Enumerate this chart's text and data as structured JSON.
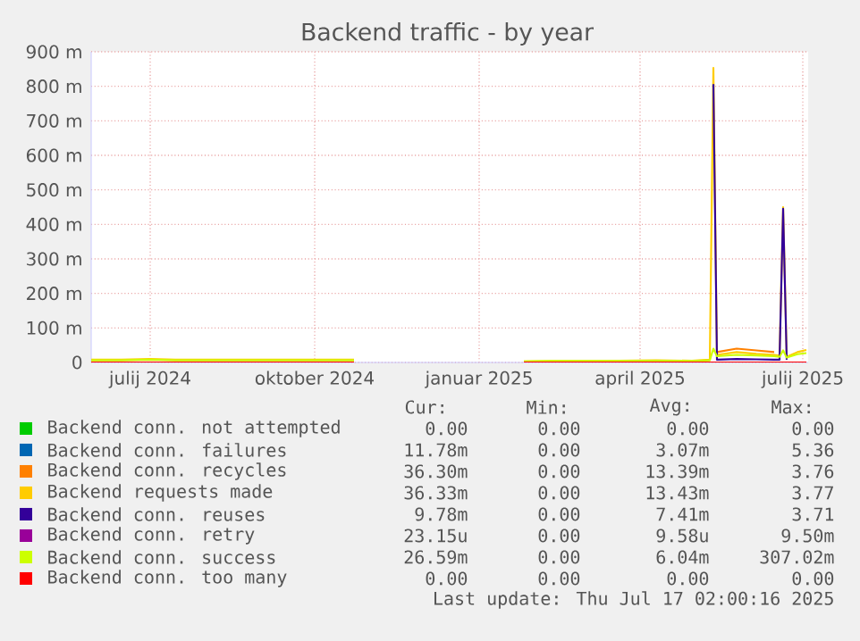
{
  "chart_data": {
    "type": "line",
    "title": "Backend traffic - by year",
    "x": [
      "2024-05-29",
      "2024-06-15",
      "2024-07-01",
      "2024-07-15",
      "2024-08-01",
      "2024-08-15",
      "2024-09-01",
      "2024-09-15",
      "2024-10-01",
      "2024-10-15",
      "2024-10-23",
      "2024-10-24",
      "2025-01-26",
      "2025-02-10",
      "2025-03-01",
      "2025-03-20",
      "2025-04-10",
      "2025-04-30",
      "2025-05-10",
      "2025-05-12",
      "2025-05-14",
      "2025-05-25",
      "2025-06-05",
      "2025-06-15",
      "2025-06-18",
      "2025-06-20",
      "2025-06-22",
      "2025-06-28",
      "2025-07-03"
    ],
    "series": [
      {
        "name": "Backend conn. not attempted",
        "color": "#00cc00",
        "values": [
          null,
          null,
          null,
          null,
          null,
          null,
          null,
          null,
          null,
          null,
          null,
          null,
          null,
          null,
          null,
          null,
          null,
          null,
          null,
          null,
          null,
          null,
          null,
          null,
          null,
          null,
          null,
          null,
          null
        ]
      },
      {
        "name": "Backend conn. failures",
        "color": "#0066b3",
        "values": [
          null,
          null,
          null,
          null,
          null,
          null,
          null,
          null,
          null,
          null,
          null,
          null,
          null,
          null,
          null,
          null,
          null,
          null,
          null,
          null,
          null,
          null,
          null,
          null,
          null,
          null,
          null,
          null,
          null
        ]
      },
      {
        "name": "Backend conn. recycles",
        "color": "#ff8000",
        "values": [
          null,
          null,
          null,
          null,
          null,
          null,
          null,
          null,
          null,
          null,
          null,
          null,
          null,
          null,
          null,
          null,
          null,
          null,
          null,
          null,
          30,
          40,
          35,
          30,
          null,
          null,
          null,
          null,
          null
        ]
      },
      {
        "name": "Backend requests made",
        "color": "#ffcc00",
        "values": [
          8,
          8,
          10,
          8,
          8,
          8,
          8,
          8,
          8,
          8,
          8,
          null,
          3,
          4,
          4,
          5,
          6,
          5,
          8,
          853,
          22,
          30,
          25,
          22,
          20,
          450,
          16,
          30,
          36
        ]
      },
      {
        "name": "Backend conn. reuses",
        "color": "#330099",
        "values": [
          null,
          null,
          null,
          null,
          null,
          null,
          null,
          null,
          null,
          null,
          null,
          null,
          null,
          null,
          null,
          null,
          null,
          null,
          null,
          806,
          8,
          10,
          9,
          8,
          8,
          445,
          8,
          null,
          null
        ]
      },
      {
        "name": "Backend conn. retry",
        "color": "#990099",
        "values": [
          null,
          null,
          null,
          null,
          null,
          null,
          null,
          null,
          null,
          null,
          null,
          null,
          null,
          null,
          null,
          null,
          null,
          null,
          null,
          null,
          null,
          null,
          null,
          null,
          null,
          null,
          null,
          null,
          null
        ]
      },
      {
        "name": "Backend conn. success",
        "color": "#ccff00",
        "values": [
          6,
          6,
          8,
          6,
          6,
          6,
          6,
          6,
          6,
          6,
          6,
          null,
          3,
          4,
          4,
          4,
          5,
          4,
          6,
          40,
          18,
          22,
          20,
          18,
          16,
          35,
          14,
          24,
          27
        ]
      },
      {
        "name": "Backend conn. too many",
        "color": "#ff0000",
        "values": [
          0,
          0,
          0,
          0,
          0,
          0,
          0,
          0,
          0,
          0,
          0,
          null,
          0,
          0,
          0,
          0,
          0,
          0,
          0,
          0,
          0,
          0,
          0,
          0,
          0,
          0,
          0,
          0,
          0
        ]
      }
    ],
    "xlim": [
      "2024-05-29",
      "2025-07-04"
    ],
    "xticks": [
      {
        "value": "2024-07-01",
        "label": "julij 2024"
      },
      {
        "value": "2024-10-01",
        "label": "oktober 2024"
      },
      {
        "value": "2025-01-01",
        "label": "januar 2025"
      },
      {
        "value": "2025-04-01",
        "label": "april 2025"
      },
      {
        "value": "2025-07-01",
        "label": "julij 2025"
      }
    ],
    "ylim": [
      0,
      900
    ],
    "yticks": [
      0,
      {
        "value": 100,
        "label": "100 m"
      },
      {
        "value": 200,
        "label": "200 m"
      },
      {
        "value": 300,
        "label": "300 m"
      },
      {
        "value": 400,
        "label": "400 m"
      },
      {
        "value": 500,
        "label": "500 m"
      },
      {
        "value": 600,
        "label": "600 m"
      },
      {
        "value": 700,
        "label": "700 m"
      },
      {
        "value": 800,
        "label": "800 m"
      },
      {
        "value": 900,
        "label": "900 m"
      }
    ],
    "grid": true,
    "legend": "bottom",
    "marker": "none",
    "line_style": "solid",
    "annotations": [
      "Cur:",
      "Min:",
      "Avg:",
      "Max:",
      "0.00",
      "0.00",
      "0.00",
      "0.00",
      "11.78m",
      "0.00",
      "3.07m",
      "5.36",
      "36.30m",
      "0.00",
      "13.39m",
      "3.76",
      "36.33m",
      "0.00",
      "13.43m",
      "3.77",
      "9.78m",
      "0.00",
      "7.41m",
      "3.71",
      "23.15u",
      "0.00",
      "9.58u",
      "9.50m",
      "26.59m",
      "0.00",
      "6.04m",
      "307.02m",
      "0.00",
      "0.00",
      "0.00",
      "0.00",
      "Last update: Thu Jul 17 02:00:16 2025"
    ]
  }
}
